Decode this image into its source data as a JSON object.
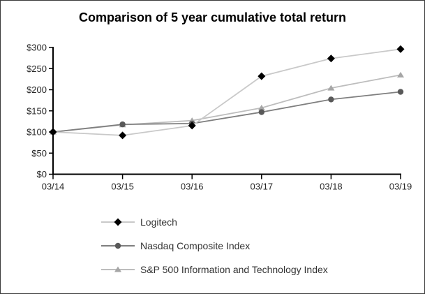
{
  "chart_data": {
    "type": "line",
    "title": "Comparison of 5 year cumulative total return",
    "x": [
      "03/14",
      "03/15",
      "03/16",
      "03/17",
      "03/18",
      "03/19"
    ],
    "y_ticks": [
      "$0",
      "$50",
      "$100",
      "$150",
      "$200",
      "$250",
      "$300"
    ],
    "ylim": [
      0,
      300
    ],
    "y_tick_step": 50,
    "grid": false,
    "legend_position": "bottom-left",
    "axis_color": "#000000",
    "label_color": "#262626",
    "series": [
      {
        "name": "Logitech",
        "marker": "diamond",
        "values": [
          100,
          92,
          115,
          232,
          274,
          296
        ],
        "line_color": "#c9c9c9",
        "marker_color": "#000000"
      },
      {
        "name": "Nasdaq Composite Index",
        "marker": "circle",
        "values": [
          100,
          118,
          120,
          147,
          177,
          195
        ],
        "line_color": "#7f7f7f",
        "marker_color": "#595959"
      },
      {
        "name": "S&P 500 Information and Technology Index",
        "marker": "triangle",
        "values": [
          100,
          117,
          127,
          157,
          204,
          235
        ],
        "line_color": "#bdbdbd",
        "marker_color": "#a6a6a6"
      }
    ]
  }
}
